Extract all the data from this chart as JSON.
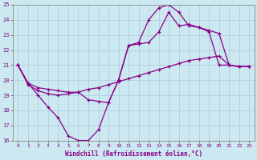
{
  "xlabel": "Windchill (Refroidissement éolien,°C)",
  "bg_color": "#cce8f0",
  "grid_color": "#aaccdd",
  "line_color": "#880088",
  "xlim": [
    -0.5,
    23.5
  ],
  "ylim": [
    16,
    25
  ],
  "xticks": [
    0,
    1,
    2,
    3,
    4,
    5,
    6,
    7,
    8,
    9,
    10,
    11,
    12,
    13,
    14,
    15,
    16,
    17,
    18,
    19,
    20,
    21,
    22,
    23
  ],
  "yticks": [
    16,
    17,
    18,
    19,
    20,
    21,
    22,
    23,
    24,
    25
  ],
  "line1_x": [
    0,
    1,
    2,
    3,
    4,
    5,
    6,
    7,
    8,
    9,
    10,
    11,
    12,
    13,
    14,
    15,
    16,
    17,
    18,
    19,
    20,
    21,
    22,
    23
  ],
  "line1_y": [
    21.0,
    19.8,
    19.0,
    18.2,
    17.5,
    16.3,
    16.0,
    16.0,
    16.7,
    18.5,
    20.0,
    22.3,
    22.5,
    24.0,
    24.8,
    25.0,
    24.5,
    23.6,
    23.5,
    23.2,
    21.0,
    21.0,
    20.9,
    20.9
  ],
  "line2_x": [
    0,
    1,
    2,
    3,
    4,
    5,
    6,
    7,
    8,
    9,
    10,
    11,
    12,
    13,
    14,
    15,
    16,
    17,
    18,
    19,
    20,
    21,
    22,
    23
  ],
  "line2_y": [
    21.0,
    19.8,
    19.5,
    19.4,
    19.3,
    19.2,
    19.2,
    18.7,
    18.6,
    18.5,
    20.0,
    22.3,
    22.4,
    22.5,
    23.2,
    24.5,
    23.6,
    23.7,
    23.5,
    23.3,
    23.1,
    21.0,
    20.9,
    20.9
  ],
  "line3_x": [
    0,
    1,
    2,
    3,
    4,
    5,
    6,
    7,
    8,
    9,
    10,
    11,
    12,
    13,
    14,
    15,
    16,
    17,
    18,
    19,
    20,
    21,
    22,
    23
  ],
  "line3_y": [
    21.0,
    19.7,
    19.3,
    19.1,
    19.0,
    19.1,
    19.2,
    19.4,
    19.5,
    19.7,
    19.9,
    20.1,
    20.3,
    20.5,
    20.7,
    20.9,
    21.1,
    21.3,
    21.4,
    21.5,
    21.6,
    21.0,
    20.9,
    20.9
  ]
}
